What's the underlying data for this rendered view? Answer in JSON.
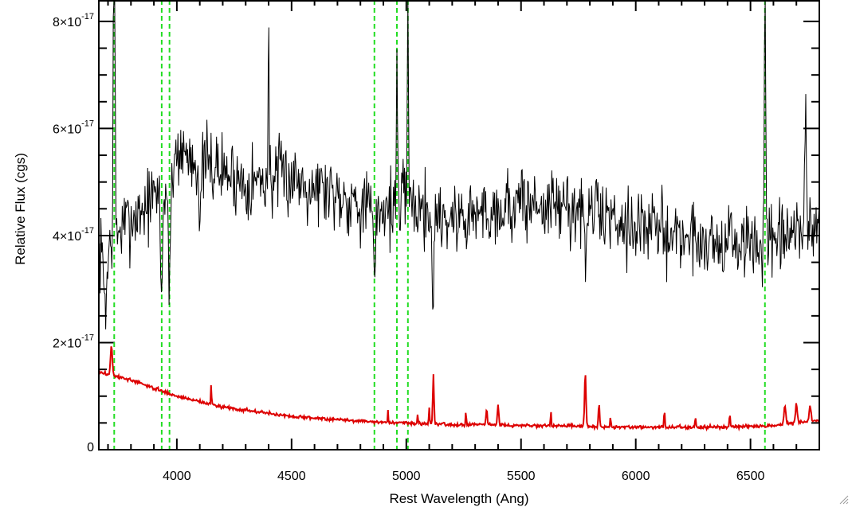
{
  "chart_data": {
    "type": "line",
    "title": "",
    "xlabel": "Rest Wavelength (Ang)",
    "ylabel": "Relative Flux (cgs)",
    "xlim": [
      3660,
      6800
    ],
    "ylim": [
      0,
      8.4e-17
    ],
    "x_ticks": [
      {
        "value": 4000,
        "label": "4000"
      },
      {
        "value": 4500,
        "label": "4500"
      },
      {
        "value": 5000,
        "label": "5000"
      },
      {
        "value": 5500,
        "label": "5500"
      },
      {
        "value": 6000,
        "label": "6000"
      },
      {
        "value": 6500,
        "label": "6500"
      }
    ],
    "y_ticks": [
      {
        "value": 0,
        "mantissa": "0",
        "exponent": ""
      },
      {
        "value": 2e-17,
        "mantissa": "2×10",
        "exponent": "-17"
      },
      {
        "value": 4e-17,
        "mantissa": "4×10",
        "exponent": "-17"
      },
      {
        "value": 6e-17,
        "mantissa": "6×10",
        "exponent": "-17"
      },
      {
        "value": 8e-17,
        "mantissa": "8×10",
        "exponent": "-17"
      }
    ],
    "x_minor_step": 100,
    "y_minor_step": 5e-18,
    "grid": false,
    "series": [
      {
        "role": "spectrum",
        "color": "#000000",
        "noise_seed": 7,
        "noise_amp": 7e-18,
        "x_step": 3,
        "continuum": [
          [
            3660,
            3.6e-17
          ],
          [
            3700,
            3.9e-17
          ],
          [
            3800,
            4.3e-17
          ],
          [
            3900,
            4.7e-17
          ],
          [
            3960,
            4.9e-17
          ],
          [
            4000,
            5.6e-17
          ],
          [
            4100,
            5.4e-17
          ],
          [
            4300,
            5e-17
          ],
          [
            4500,
            5.1e-17
          ],
          [
            4700,
            4.8e-17
          ],
          [
            4860,
            4.5e-17
          ],
          [
            5000,
            4.6e-17
          ],
          [
            5200,
            4.3e-17
          ],
          [
            5500,
            4.6e-17
          ],
          [
            5800,
            4.5e-17
          ],
          [
            6000,
            4.2e-17
          ],
          [
            6300,
            3.9e-17
          ],
          [
            6600,
            3.8e-17
          ],
          [
            6800,
            4.2e-17
          ]
        ],
        "features": [
          {
            "x": 3727,
            "amp": 8.8e-17,
            "width": 3
          },
          {
            "x": 3690,
            "amp": -1e-17,
            "width": 8
          },
          {
            "x": 3934,
            "amp": -2e-17,
            "width": 4
          },
          {
            "x": 3968,
            "amp": -2.3e-17,
            "width": 4
          },
          {
            "x": 4102,
            "amp": -1.2e-17,
            "width": 5
          },
          {
            "x": 4400,
            "amp": 4e-17,
            "width": 1.5
          },
          {
            "x": 4861,
            "amp": -1.4e-17,
            "width": 5
          },
          {
            "x": 4959,
            "amp": 2.8e-17,
            "width": 2.5
          },
          {
            "x": 5007,
            "amp": 4.5e-17,
            "width": 2.5
          },
          {
            "x": 5116,
            "amp": -2.2e-17,
            "width": 3
          },
          {
            "x": 5780,
            "amp": -1.6e-17,
            "width": 3
          },
          {
            "x": 6563,
            "amp": 4.8e-17,
            "width": 3
          },
          {
            "x": 6740,
            "amp": 2.4e-17,
            "width": 4
          }
        ]
      },
      {
        "role": "error",
        "color": "#dd0000",
        "noise_seed": 3,
        "noise_amp": 3e-19,
        "x_step": 3,
        "continuum": [
          [
            3660,
            1.45e-17
          ],
          [
            3800,
            1.3e-17
          ],
          [
            4000,
            1e-17
          ],
          [
            4200,
            8e-18
          ],
          [
            4500,
            6.2e-18
          ],
          [
            4860,
            5.2e-18
          ],
          [
            5200,
            4.7e-18
          ],
          [
            5600,
            4.5e-18
          ],
          [
            6000,
            4.2e-18
          ],
          [
            6300,
            4.2e-18
          ],
          [
            6600,
            4.5e-18
          ],
          [
            6800,
            5.5e-18
          ]
        ],
        "features": [
          {
            "x": 3715,
            "amp": 5.5e-18,
            "width": 4
          },
          {
            "x": 4150,
            "amp": 4.5e-18,
            "width": 1.2
          },
          {
            "x": 4920,
            "amp": 2.5e-18,
            "width": 1.2
          },
          {
            "x": 5050,
            "amp": 2.5e-18,
            "width": 1.2
          },
          {
            "x": 5100,
            "amp": 3e-18,
            "width": 2
          },
          {
            "x": 5118,
            "amp": 9.5e-18,
            "width": 2.5
          },
          {
            "x": 5260,
            "amp": 2.5e-18,
            "width": 1.5
          },
          {
            "x": 5350,
            "amp": 3e-18,
            "width": 3
          },
          {
            "x": 5400,
            "amp": 4e-18,
            "width": 3
          },
          {
            "x": 5630,
            "amp": 3e-18,
            "width": 1.5
          },
          {
            "x": 5780,
            "amp": 1e-17,
            "width": 3
          },
          {
            "x": 5840,
            "amp": 4.5e-18,
            "width": 2.5
          },
          {
            "x": 5890,
            "amp": 1.5e-18,
            "width": 2
          },
          {
            "x": 6125,
            "amp": 3e-18,
            "width": 2
          },
          {
            "x": 6260,
            "amp": 2e-18,
            "width": 2
          },
          {
            "x": 6410,
            "amp": 2.5e-18,
            "width": 2
          },
          {
            "x": 6650,
            "amp": 3.5e-18,
            "width": 4
          },
          {
            "x": 6700,
            "amp": 3.5e-18,
            "width": 4
          },
          {
            "x": 6760,
            "amp": 3e-18,
            "width": 4
          }
        ]
      }
    ],
    "reference_lines": {
      "color": "#22dd22",
      "style": "dashed",
      "x": [
        3727,
        3934,
        3968,
        4861,
        4959,
        5007,
        6563
      ]
    }
  }
}
